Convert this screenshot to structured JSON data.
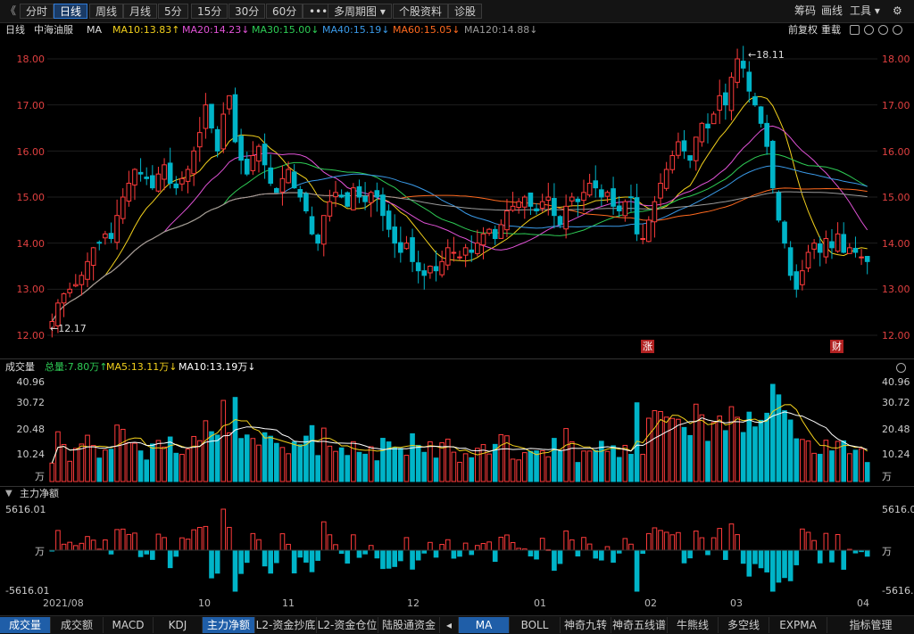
{
  "toolbar": {
    "back": "《",
    "items": [
      "分时",
      "日线",
      "周线",
      "月线",
      "5分",
      "15分",
      "30分",
      "60分",
      "•••",
      "多周期图 ▾",
      "个股资料",
      "诊股"
    ],
    "active_index": 1,
    "right": [
      "筹码",
      "画线",
      "工具 ▾",
      "⚙"
    ]
  },
  "ma_bar": {
    "period": "日线",
    "stock_name": "中海油服",
    "ma_label": "MA",
    "ma10": "MA10:13.83↑",
    "ma20": "MA20:14.23↓",
    "ma30": "MA30:15.00↓",
    "ma40": "MA40:15.19↓",
    "ma60": "MA60:15.05↓",
    "ma120": "MA120:14.88↓",
    "adjust": "前复权",
    "overlay": "重载"
  },
  "colors": {
    "up": "#ff3b3b",
    "down": "#00b4c8",
    "ma10": "#f2d01c",
    "ma20": "#e052d6",
    "ma30": "#2ecc55",
    "ma40": "#3a9ae8",
    "ma60": "#ff6a1f",
    "ma120": "#9a9a9a",
    "ma5vol": "#f2d01c",
    "ma10vol": "#ffffff"
  },
  "price_axis": [
    "18.00",
    "17.00",
    "16.00",
    "15.00",
    "14.00",
    "13.00",
    "12.00"
  ],
  "annotations": {
    "high": "18.11",
    "low": "12.17",
    "tag_up": "涨",
    "tag_fin": "财"
  },
  "volume_panel": {
    "title": "成交量",
    "total": "总量:7.80万↑",
    "ma5": "MA5:13.11万↓",
    "ma10": "MA10:13.19万↓",
    "axis": [
      "40.96",
      "30.72",
      "20.48",
      "10.24",
      "万"
    ]
  },
  "flow_panel": {
    "title": "主力净额",
    "axis": [
      "5616.01",
      "万",
      "-5616.01"
    ]
  },
  "x_labels": [
    "2021/08",
    "10",
    "11",
    "12",
    "01",
    "02",
    "03",
    "04"
  ],
  "bottom_tabs": [
    "成交量",
    "成交额",
    "MACD",
    "KDJ",
    "主力净额",
    "L2-资金抄底",
    "L2-资金仓位",
    "陆股通资金",
    "◂",
    "MA",
    "BOLL",
    "神奇九转",
    "神奇五线谱",
    "牛熊线",
    "多空线",
    "EXPMA",
    "指标管理"
  ],
  "chart_data": {
    "type": "candlestick",
    "x_range": [
      "2021/08",
      "04"
    ],
    "price_range": [
      12.17,
      18.11
    ],
    "series_latest": {
      "MA10": 13.83,
      "MA20": 14.23,
      "MA30": 15.0,
      "MA40": 15.19,
      "MA60": 15.05,
      "MA120": 14.88
    },
    "volume_latest_wan": 7.8,
    "volume_ma5_wan": 13.11,
    "volume_ma10_wan": 13.19,
    "volume_ylim_wan": [
      0,
      40.96
    ],
    "flow_ylim_wan": [
      -5616.01,
      5616.01
    ],
    "closes": [
      12.3,
      12.7,
      12.9,
      13.0,
      13.1,
      13.3,
      13.6,
      13.9,
      14.0,
      14.2,
      14.1,
      14.6,
      15.0,
      15.3,
      15.6,
      15.5,
      15.4,
      15.2,
      15.5,
      15.7,
      15.3,
      15.2,
      15.4,
      15.6,
      16.0,
      16.4,
      17.0,
      16.5,
      16.0,
      16.8,
      17.2,
      16.2,
      15.8,
      15.5,
      15.9,
      16.1,
      15.7,
      15.3,
      15.1,
      15.4,
      15.6,
      15.2,
      15.0,
      14.7,
      14.2,
      14.0,
      14.6,
      14.9,
      15.1,
      15.0,
      14.8,
      15.2,
      15.0,
      14.9,
      15.1,
      15.0,
      14.6,
      14.3,
      14.0,
      13.8,
      14.0,
      13.6,
      13.4,
      13.3,
      13.5,
      13.4,
      13.6,
      13.9,
      13.8,
      13.7,
      13.9,
      13.8,
      14.0,
      14.2,
      14.3,
      14.1,
      14.4,
      14.7,
      14.8,
      14.9,
      15.0,
      14.8,
      14.7,
      14.9,
      15.0,
      14.6,
      14.4,
      14.8,
      15.0,
      14.9,
      15.1,
      15.3,
      15.2,
      15.0,
      15.1,
      14.8,
      14.7,
      14.9,
      15.0,
      14.2,
      14.1,
      14.5,
      14.9,
      15.3,
      15.6,
      15.9,
      16.2,
      16.0,
      15.8,
      16.3,
      16.6,
      16.5,
      16.8,
      17.2,
      17.0,
      17.6,
      18.0,
      17.8,
      17.3,
      17.0,
      16.6,
      16.1,
      15.2,
      14.5,
      14.0,
      13.3,
      13.0,
      13.4,
      13.8,
      14.0,
      13.8,
      14.1,
      13.9,
      14.2,
      13.8,
      13.9,
      13.8,
      13.7,
      13.6
    ]
  }
}
